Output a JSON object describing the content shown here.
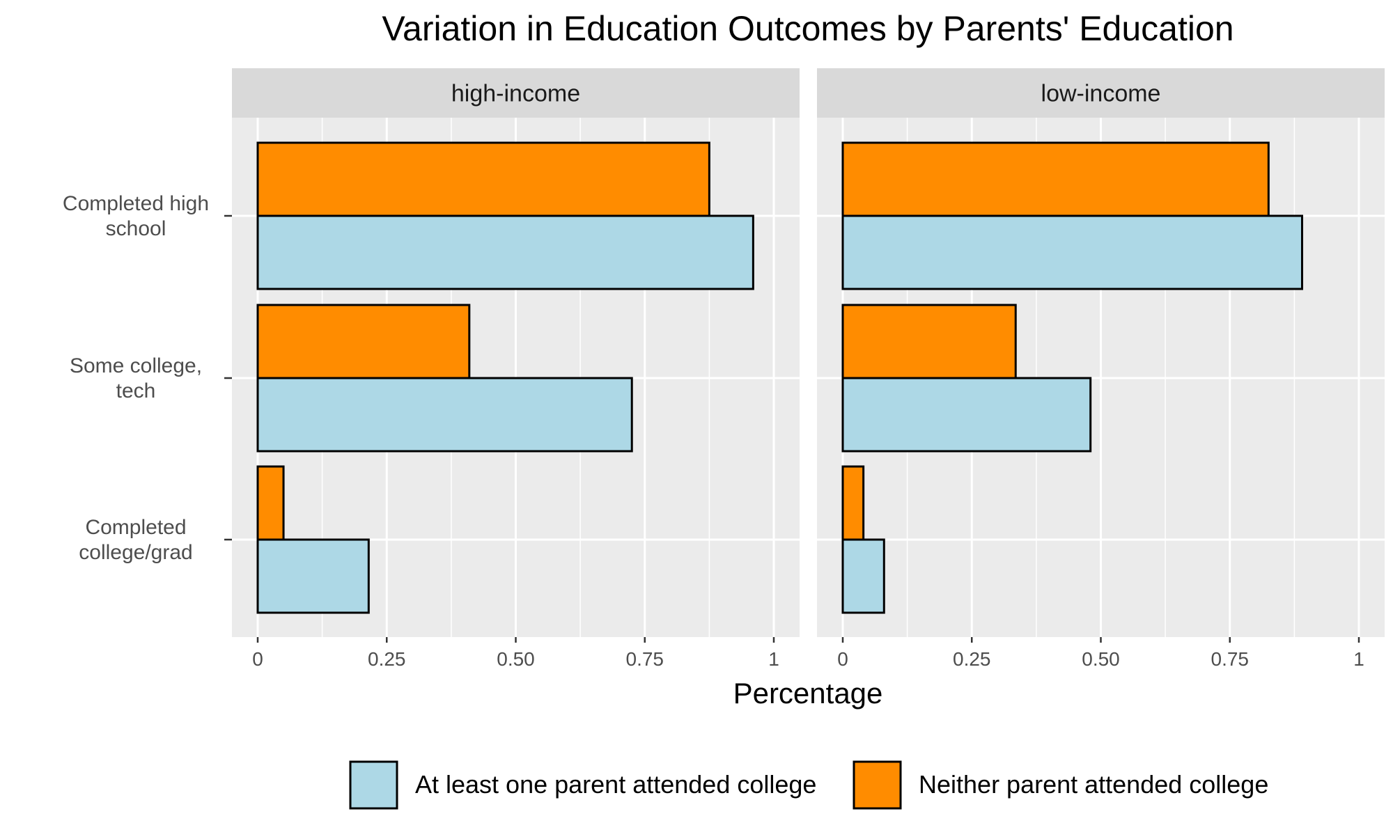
{
  "chart_data": {
    "type": "bar",
    "orientation": "horizontal",
    "title": "Variation in Education Outcomes by Parents' Education",
    "xlabel": "Percentage",
    "ylabel": "",
    "xlim": [
      0,
      1
    ],
    "x_ticks": [
      "0",
      "0.25",
      "0.50",
      "0.75",
      "1"
    ],
    "categories": [
      "Completed high\nschool",
      "Some college,\ntech",
      "Completed\ncollege/grad"
    ],
    "facets": [
      {
        "name": "high-income",
        "series": [
          {
            "name": "Neither parent attended college",
            "values": [
              0.875,
              0.41,
              0.05
            ]
          },
          {
            "name": "At least one parent attended college",
            "values": [
              0.96,
              0.725,
              0.215
            ]
          }
        ]
      },
      {
        "name": "low-income",
        "series": [
          {
            "name": "Neither parent attended college",
            "values": [
              0.825,
              0.335,
              0.04
            ]
          },
          {
            "name": "At least one parent attended college",
            "values": [
              0.89,
              0.48,
              0.08
            ]
          }
        ]
      }
    ],
    "colors": {
      "At least one parent attended college": "#ADD8E6",
      "Neither parent attended college": "#FF8C00",
      "panel_background": "#EBEBEB",
      "strip_background": "#D9D9D9",
      "grid": "#FFFFFF",
      "bar_outline": "#000000"
    },
    "legend": {
      "position": "bottom",
      "items": [
        "At least one parent attended college",
        "Neither parent attended college"
      ]
    },
    "grid": true
  }
}
